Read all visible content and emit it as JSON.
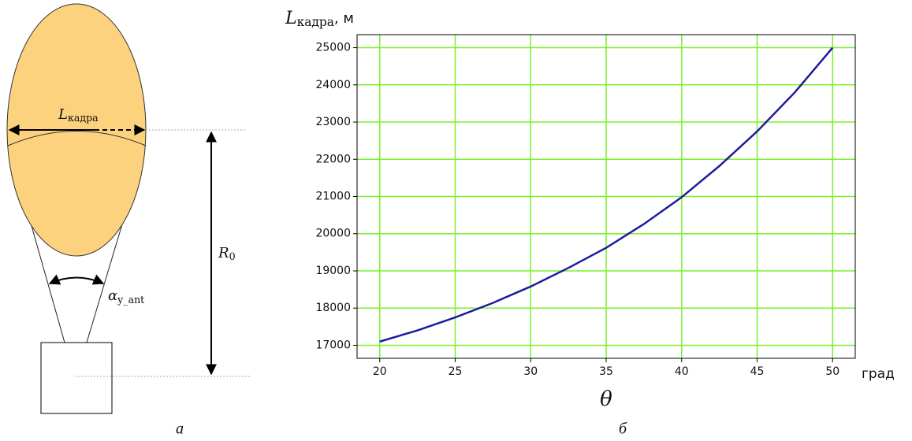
{
  "diagram": {
    "width_label": {
      "symbol": "L",
      "subscript": "кадра"
    },
    "angle_label": {
      "symbol": "α",
      "subscript": "y_ant"
    },
    "range_label": {
      "symbol": "R",
      "subscript": "0"
    }
  },
  "captions": [
    "а",
    "б"
  ],
  "chart_data": {
    "type": "line",
    "y_label": {
      "symbol": "L",
      "subscript": "кадра",
      "unit": ", м"
    },
    "x_label": "θ",
    "x_unit": "град",
    "x": [
      20,
      22.5,
      25,
      27.5,
      30,
      32.5,
      35,
      37.5,
      40,
      42.5,
      45,
      47.5,
      50
    ],
    "values": [
      17100,
      17400,
      17750,
      18140,
      18580,
      19080,
      19620,
      20260,
      20980,
      21820,
      22750,
      23800,
      25000
    ],
    "color": "#1c1ca0",
    "grid_color": "#7cf02a",
    "grid": true,
    "xlim": [
      18.5,
      51.5
    ],
    "ylim": [
      16650,
      25350
    ],
    "xticks": [
      20,
      25,
      30,
      35,
      40,
      45,
      50
    ],
    "yticks": [
      17000,
      18000,
      19000,
      20000,
      21000,
      22000,
      23000,
      24000,
      25000
    ]
  }
}
